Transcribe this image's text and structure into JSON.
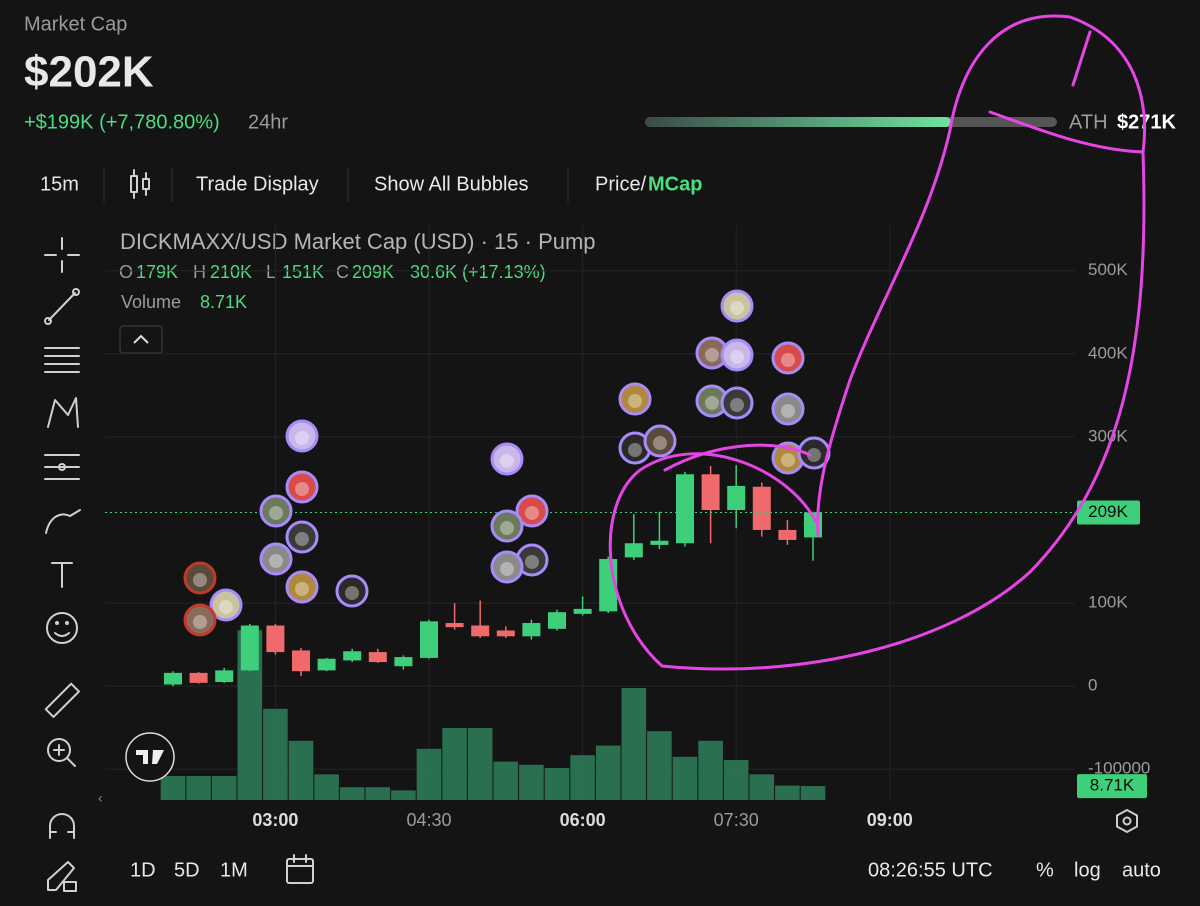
{
  "header": {
    "label": "Market Cap",
    "value": "$202K",
    "change": "+$199K (+7,780.80%)",
    "period": "24hr",
    "ath_label": "ATH",
    "ath_value": "$271K"
  },
  "toolbar": {
    "interval": "15m",
    "trade_display": "Trade Display",
    "bubbles": "Show All Bubbles",
    "price": "Price/",
    "mcap": "MCap"
  },
  "chart_data": {
    "type": "candlestick",
    "title": "DICKMAXX/USD Market Cap (USD) · 15 · Pump",
    "readout": {
      "o_label": "O",
      "o": "179K",
      "h_label": "H",
      "h": "210K",
      "l_label": "L",
      "l": "151K",
      "c_label": "C",
      "c": "209K",
      "change": "30.6K (+17.13%)",
      "volume_label": "Volume",
      "volume": "8.71K"
    },
    "categories": [
      null,
      null,
      null,
      null,
      "03:00",
      null,
      null,
      null,
      null,
      null,
      "04:30",
      null,
      null,
      null,
      null,
      null,
      "06:00",
      null,
      null,
      null,
      null,
      null,
      "07:30",
      null,
      null,
      null,
      null,
      null,
      "09:00"
    ],
    "open": [
      2,
      16,
      5,
      19,
      73,
      43,
      19,
      31,
      41,
      24,
      34,
      76,
      73,
      67,
      60,
      69,
      87,
      90,
      155,
      170,
      172,
      255,
      212,
      240,
      188,
      179,
      null,
      null,
      null
    ],
    "high": [
      18,
      17,
      22,
      75,
      75,
      46,
      34,
      45,
      45,
      37,
      80,
      100,
      103,
      72,
      80,
      92,
      108,
      156,
      207,
      210,
      258,
      265,
      266,
      245,
      200,
      210,
      null,
      null,
      null
    ],
    "low": [
      0,
      3,
      4,
      18,
      38,
      12,
      18,
      29,
      28,
      20,
      33,
      68,
      58,
      58,
      56,
      67,
      85,
      88,
      152,
      165,
      168,
      172,
      190,
      180,
      170,
      151,
      null,
      null,
      null
    ],
    "close": [
      16,
      4,
      19,
      73,
      41,
      18,
      33,
      42,
      29,
      35,
      78,
      71,
      60,
      60,
      76,
      89,
      93,
      153,
      172,
      175,
      255,
      212,
      241,
      188,
      176,
      209,
      null,
      null,
      null
    ],
    "up_color": "#3ecf7a",
    "down_color": "#f0696b",
    "ylim": [
      -137,
      555
    ],
    "yticks": [
      {
        "value": -100,
        "label": "-100000"
      },
      0,
      {
        "value": 100,
        "label": "100K"
      },
      {
        "value": 300,
        "label": "300K"
      },
      {
        "value": 400,
        "label": "400K"
      },
      {
        "value": 500,
        "label": "500K"
      }
    ],
    "grid": true,
    "last_price": {
      "value": 209,
      "label": "209K"
    },
    "volume": {
      "values": [
        15,
        15,
        15,
        106,
        57,
        37,
        16,
        8,
        8,
        6,
        32,
        45,
        45,
        24,
        22,
        20,
        28,
        34,
        70,
        43,
        27,
        37,
        25,
        16,
        9,
        8.71,
        null,
        null,
        null
      ],
      "color": "#2c7a56",
      "ylim": [
        0,
        140
      ],
      "last_label": "8.71K"
    }
  },
  "footer": {
    "ranges": [
      "1D",
      "5D",
      "1M"
    ],
    "clock": "08:26:55 UTC",
    "percent": "%",
    "log": "log",
    "auto": "auto"
  }
}
